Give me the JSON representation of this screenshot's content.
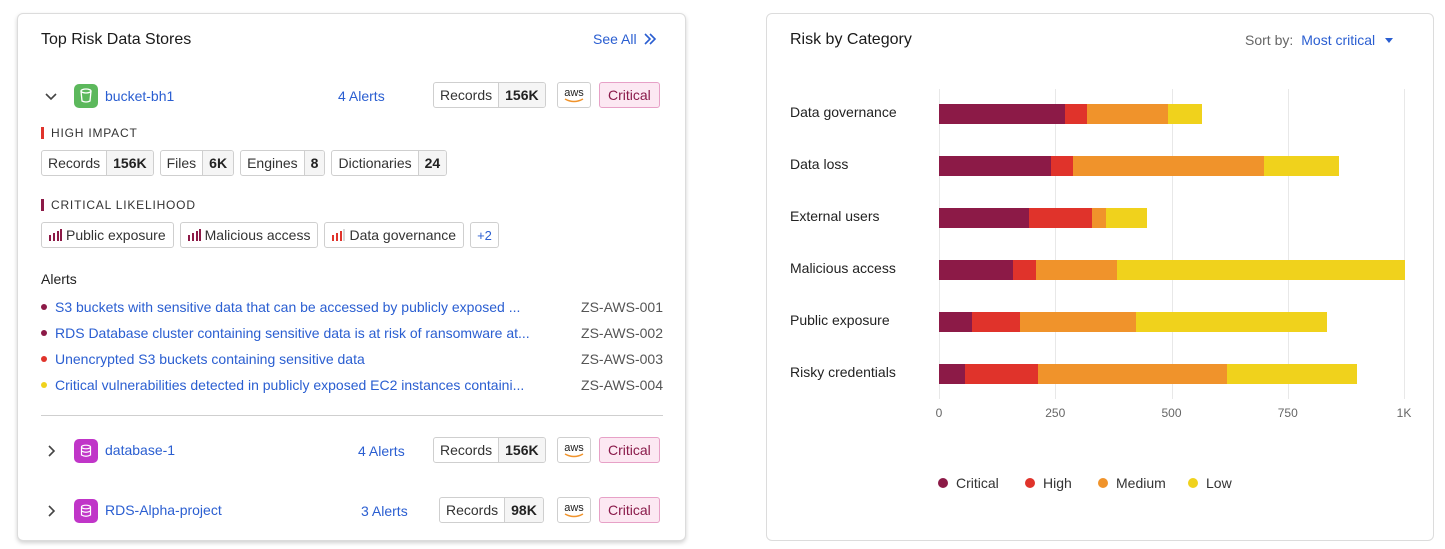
{
  "left": {
    "title": "Top Risk Data Stores",
    "see_all": "See All",
    "stores": [
      {
        "name": "bucket-bh1",
        "alerts": "4 Alerts",
        "records_label": "Records",
        "records_value": "156K",
        "provider": "aws",
        "severity": "Critical"
      },
      {
        "name": "database-1",
        "alerts": "4 Alerts",
        "records_label": "Records",
        "records_value": "156K",
        "provider": "aws",
        "severity": "Critical"
      },
      {
        "name": "RDS-Alpha-project",
        "alerts": "3 Alerts",
        "records_label": "Records",
        "records_value": "98K",
        "provider": "aws",
        "severity": "Critical"
      }
    ],
    "high_impact": {
      "label": "HIGH IMPACT",
      "chips": [
        {
          "k": "Records",
          "v": "156K"
        },
        {
          "k": "Files",
          "v": "6K"
        },
        {
          "k": "Engines",
          "v": "8"
        },
        {
          "k": "Dictionaries",
          "v": "24"
        }
      ]
    },
    "critical_likelihood": {
      "label": "CRITICAL LIKELIHOOD",
      "tags": [
        "Public exposure",
        "Malicious access",
        "Data governance"
      ],
      "more": "+2"
    },
    "alerts_title": "Alerts",
    "alerts": [
      {
        "text": "S3 buckets with sensitive data that can be accessed by publicly exposed ...",
        "code": "ZS-AWS-001",
        "color": "#8c1a47"
      },
      {
        "text": "RDS Database cluster containing sensitive data is at risk of ransomware at...",
        "code": "ZS-AWS-002",
        "color": "#8c1a47"
      },
      {
        "text": "Unencrypted S3 buckets containing sensitive data",
        "code": "ZS-AWS-003",
        "color": "#e0332b"
      },
      {
        "text": "Critical vulnerabilities detected in publicly exposed EC2 instances containi...",
        "code": "ZS-AWS-004",
        "color": "#f0d21c"
      }
    ]
  },
  "right": {
    "title": "Risk by Category",
    "sort_label": "Sort by:",
    "sort_value": "Most critical"
  },
  "colors": {
    "critical": "#8c1a47",
    "high": "#e0332b",
    "medium": "#f0932b",
    "low": "#f0d21c"
  },
  "chart_data": {
    "type": "bar",
    "orientation": "horizontal",
    "stacked": true,
    "categories": [
      "Data governance",
      "Data loss",
      "External users",
      "Malicious access",
      "Public exposure",
      "Risky credentials"
    ],
    "series": [
      {
        "name": "Critical",
        "values": [
          270,
          240,
          193,
          160,
          72,
          55
        ]
      },
      {
        "name": "High",
        "values": [
          48,
          48,
          137,
          48,
          103,
          158
        ]
      },
      {
        "name": "Medium",
        "values": [
          175,
          410,
          30,
          175,
          248,
          407
        ]
      },
      {
        "name": "Low",
        "values": [
          72,
          162,
          88,
          620,
          412,
          280
        ]
      }
    ],
    "xlim": [
      0,
      1000
    ],
    "ticks": [
      "0",
      "250",
      "500",
      "750",
      "1K"
    ],
    "legend_position": "bottom",
    "grid": true
  }
}
